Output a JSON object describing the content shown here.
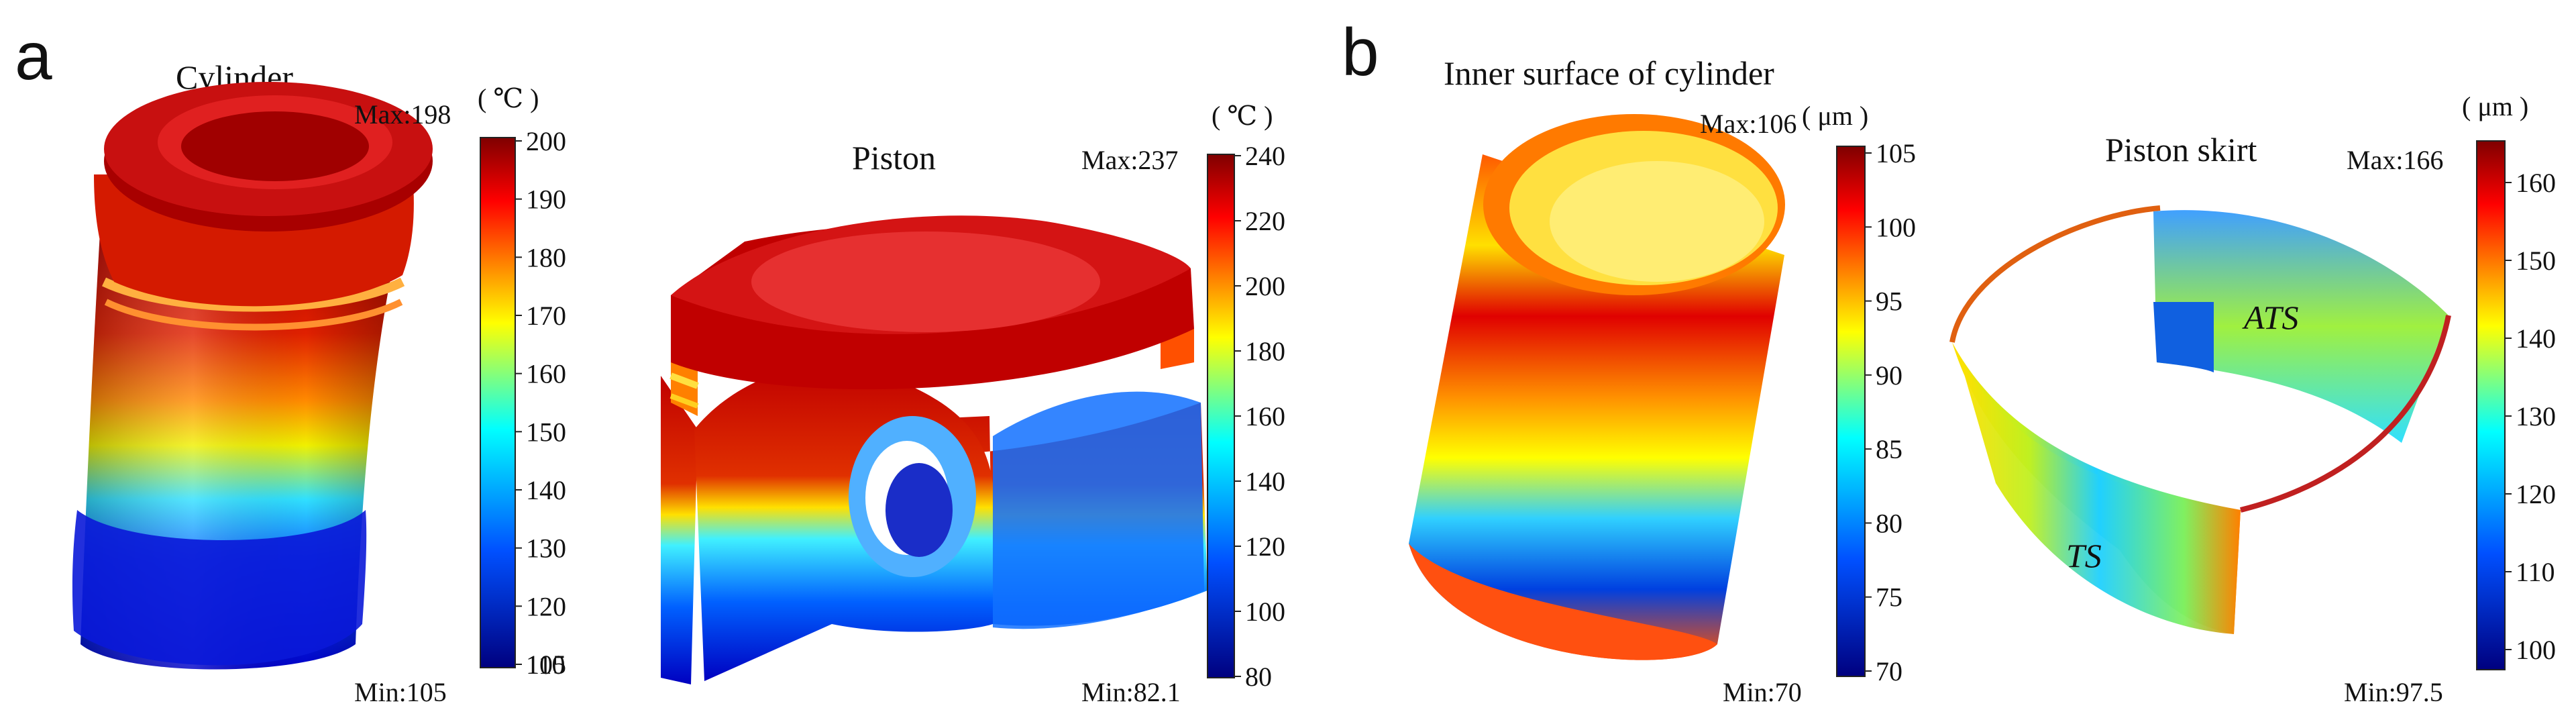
{
  "panels": {
    "a": {
      "letter": "a",
      "cylinder": {
        "title": "Cylinder",
        "unit": "( ℃ )",
        "max_label": "Max:198",
        "min_label": "Min:105",
        "ticks": [
          "200",
          "190",
          "180",
          "170",
          "160",
          "150",
          "140",
          "130",
          "120",
          "110",
          "105"
        ]
      },
      "piston": {
        "title": "Piston",
        "unit": "( ℃ )",
        "max_label": "Max:237",
        "min_label": "Min:82.1",
        "ticks": [
          "240",
          "220",
          "200",
          "180",
          "160",
          "140",
          "120",
          "100",
          "80"
        ]
      }
    },
    "b": {
      "letter": "b",
      "inner": {
        "title": "Inner surface of cylinder",
        "unit": "( μm )",
        "max_label": "Max:106",
        "min_label": "Min:70",
        "ticks": [
          "105",
          "100",
          "95",
          "90",
          "85",
          "80",
          "75",
          "70"
        ]
      },
      "skirt": {
        "title": "Piston skirt",
        "unit": "( μm )",
        "max_label": "Max:166",
        "min_label": "Min:97.5",
        "ticks": [
          "160",
          "150",
          "140",
          "130",
          "120",
          "110",
          "100"
        ],
        "label_ats": "ATS",
        "label_ts": "TS"
      }
    }
  },
  "colormap": {
    "red": "#a00000",
    "orange": "#ff6a00",
    "yellow": "#ffff00",
    "cyan": "#00e5ff",
    "blue": "#0000d0"
  }
}
